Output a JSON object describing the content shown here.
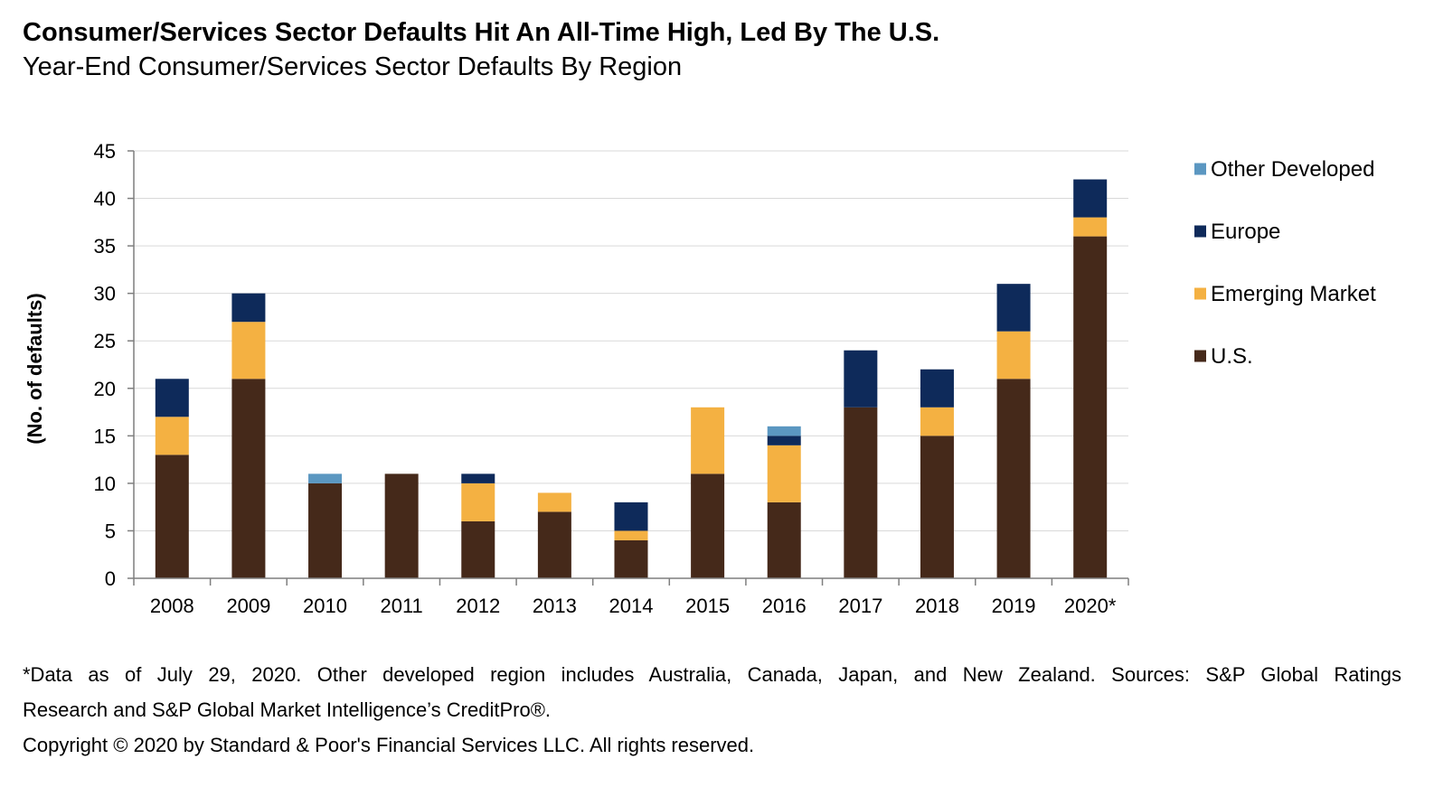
{
  "title": "Consumer/Services Sector Defaults Hit An All-Time High, Led By The U.S.",
  "subtitle": "Year-End Consumer/Services Sector Defaults By Region",
  "footnotes": {
    "line1": "*Data as of July 29, 2020. Other developed region includes Australia, Canada, Japan, and New Zealand. Sources: S&P Global Ratings",
    "line2": "Research and S&P Global Market Intelligence’s CreditPro®.",
    "line3": "Copyright © 2020 by Standard & Poor's Financial Services LLC. All rights reserved."
  },
  "chart_data": {
    "type": "bar",
    "stacked": true,
    "categories": [
      "2008",
      "2009",
      "2010",
      "2011",
      "2012",
      "2013",
      "2014",
      "2015",
      "2016",
      "2017",
      "2018",
      "2019",
      "2020*"
    ],
    "series": [
      {
        "name": "U.S.",
        "color": "#45291a",
        "values": [
          13,
          21,
          10,
          11,
          6,
          7,
          4,
          11,
          8,
          18,
          15,
          21,
          36
        ]
      },
      {
        "name": "Emerging Market",
        "color": "#f4b142",
        "values": [
          4,
          6,
          0,
          0,
          4,
          2,
          1,
          7,
          6,
          0,
          3,
          5,
          2
        ]
      },
      {
        "name": "Europe",
        "color": "#0e2a5a",
        "values": [
          4,
          3,
          0,
          0,
          1,
          0,
          3,
          0,
          1,
          6,
          4,
          5,
          4
        ]
      },
      {
        "name": "Other Developed",
        "color": "#5b97c1",
        "values": [
          0,
          0,
          1,
          0,
          0,
          0,
          0,
          0,
          1,
          0,
          0,
          0,
          0
        ]
      }
    ],
    "legend_order": [
      "Other Developed",
      "Europe",
      "Emerging Market",
      "U.S."
    ],
    "legend_position": "right",
    "ylabel": "(No. of defaults)",
    "ylim": [
      0,
      45
    ],
    "yticks": [
      0,
      5,
      10,
      15,
      20,
      25,
      30,
      35,
      40,
      45
    ],
    "grid": true,
    "colors": {
      "gridline": "#d9d9d9",
      "axis": "#7f7f7f"
    }
  }
}
